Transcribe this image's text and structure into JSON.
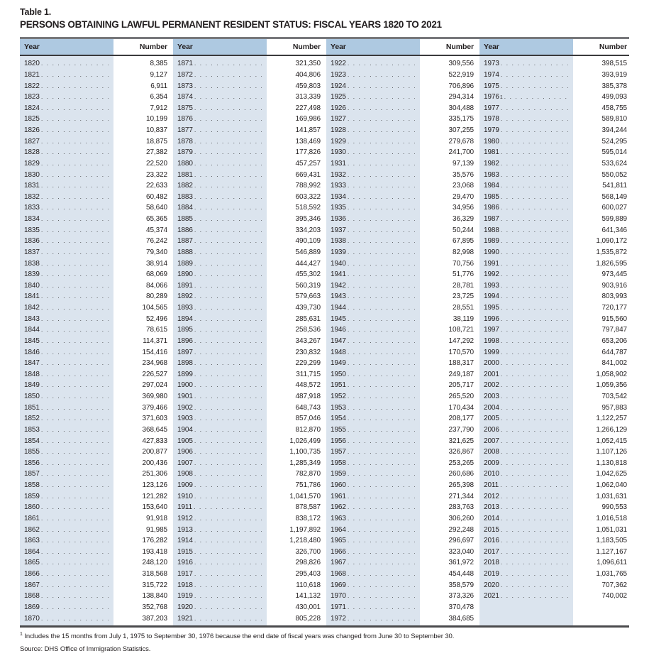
{
  "title": {
    "table_label": "Table 1.",
    "heading": "PERSONS OBTAINING LAWFUL PERMANENT RESIDENT STATUS: FISCAL YEARS 1820 TO 2021"
  },
  "header": {
    "year_label": "Year",
    "number_label": "Number"
  },
  "colors": {
    "header_blue": "#aec9e1",
    "body_blue": "#dbe4ee",
    "top_rule": "#77787b",
    "text": "#231f20"
  },
  "columns": [
    {
      "rows": [
        {
          "year": "1820",
          "number": "8,385"
        },
        {
          "year": "1821",
          "number": "9,127"
        },
        {
          "year": "1822",
          "number": "6,911"
        },
        {
          "year": "1823",
          "number": "6,354"
        },
        {
          "year": "1824",
          "number": "7,912"
        },
        {
          "year": "1825",
          "number": "10,199"
        },
        {
          "year": "1826",
          "number": "10,837"
        },
        {
          "year": "1827",
          "number": "18,875"
        },
        {
          "year": "1828",
          "number": "27,382"
        },
        {
          "year": "1829",
          "number": "22,520"
        },
        {
          "year": "1830",
          "number": "23,322"
        },
        {
          "year": "1831",
          "number": "22,633"
        },
        {
          "year": "1832",
          "number": "60,482"
        },
        {
          "year": "1833",
          "number": "58,640"
        },
        {
          "year": "1834",
          "number": "65,365"
        },
        {
          "year": "1835",
          "number": "45,374"
        },
        {
          "year": "1836",
          "number": "76,242"
        },
        {
          "year": "1837",
          "number": "79,340"
        },
        {
          "year": "1838",
          "number": "38,914"
        },
        {
          "year": "1839",
          "number": "68,069"
        },
        {
          "year": "1840",
          "number": "84,066"
        },
        {
          "year": "1841",
          "number": "80,289"
        },
        {
          "year": "1842",
          "number": "104,565"
        },
        {
          "year": "1843",
          "number": "52,496"
        },
        {
          "year": "1844",
          "number": "78,615"
        },
        {
          "year": "1845",
          "number": "114,371"
        },
        {
          "year": "1846",
          "number": "154,416"
        },
        {
          "year": "1847",
          "number": "234,968"
        },
        {
          "year": "1848",
          "number": "226,527"
        },
        {
          "year": "1849",
          "number": "297,024"
        },
        {
          "year": "1850",
          "number": "369,980"
        },
        {
          "year": "1851",
          "number": "379,466"
        },
        {
          "year": "1852",
          "number": "371,603"
        },
        {
          "year": "1853",
          "number": "368,645"
        },
        {
          "year": "1854",
          "number": "427,833"
        },
        {
          "year": "1855",
          "number": "200,877"
        },
        {
          "year": "1856",
          "number": "200,436"
        },
        {
          "year": "1857",
          "number": "251,306"
        },
        {
          "year": "1858",
          "number": "123,126"
        },
        {
          "year": "1859",
          "number": "121,282"
        },
        {
          "year": "1860",
          "number": "153,640"
        },
        {
          "year": "1861",
          "number": "91,918"
        },
        {
          "year": "1862",
          "number": "91,985"
        },
        {
          "year": "1863",
          "number": "176,282"
        },
        {
          "year": "1864",
          "number": "193,418"
        },
        {
          "year": "1865",
          "number": "248,120"
        },
        {
          "year": "1866",
          "number": "318,568"
        },
        {
          "year": "1867",
          "number": "315,722"
        },
        {
          "year": "1868",
          "number": "138,840"
        },
        {
          "year": "1869",
          "number": "352,768"
        },
        {
          "year": "1870",
          "number": "387,203"
        }
      ]
    },
    {
      "rows": [
        {
          "year": "1871",
          "number": "321,350"
        },
        {
          "year": "1872",
          "number": "404,806"
        },
        {
          "year": "1873",
          "number": "459,803"
        },
        {
          "year": "1874",
          "number": "313,339"
        },
        {
          "year": "1875",
          "number": "227,498"
        },
        {
          "year": "1876",
          "number": "169,986"
        },
        {
          "year": "1877",
          "number": "141,857"
        },
        {
          "year": "1878",
          "number": "138,469"
        },
        {
          "year": "1879",
          "number": "177,826"
        },
        {
          "year": "1880",
          "number": "457,257"
        },
        {
          "year": "1881",
          "number": "669,431"
        },
        {
          "year": "1882",
          "number": "788,992"
        },
        {
          "year": "1883",
          "number": "603,322"
        },
        {
          "year": "1884",
          "number": "518,592"
        },
        {
          "year": "1885",
          "number": "395,346"
        },
        {
          "year": "1886",
          "number": "334,203"
        },
        {
          "year": "1887",
          "number": "490,109"
        },
        {
          "year": "1888",
          "number": "546,889"
        },
        {
          "year": "1889",
          "number": "444,427"
        },
        {
          "year": "1890",
          "number": "455,302"
        },
        {
          "year": "1891",
          "number": "560,319"
        },
        {
          "year": "1892",
          "number": "579,663"
        },
        {
          "year": "1893",
          "number": "439,730"
        },
        {
          "year": "1894",
          "number": "285,631"
        },
        {
          "year": "1895",
          "number": "258,536"
        },
        {
          "year": "1896",
          "number": "343,267"
        },
        {
          "year": "1897",
          "number": "230,832"
        },
        {
          "year": "1898",
          "number": "229,299"
        },
        {
          "year": "1899",
          "number": "311,715"
        },
        {
          "year": "1900",
          "number": "448,572"
        },
        {
          "year": "1901",
          "number": "487,918"
        },
        {
          "year": "1902",
          "number": "648,743"
        },
        {
          "year": "1903",
          "number": "857,046"
        },
        {
          "year": "1904",
          "number": "812,870"
        },
        {
          "year": "1905",
          "number": "1,026,499"
        },
        {
          "year": "1906",
          "number": "1,100,735"
        },
        {
          "year": "1907",
          "number": "1,285,349"
        },
        {
          "year": "1908",
          "number": "782,870"
        },
        {
          "year": "1909",
          "number": "751,786"
        },
        {
          "year": "1910",
          "number": "1,041,570"
        },
        {
          "year": "1911",
          "number": "878,587"
        },
        {
          "year": "1912",
          "number": "838,172"
        },
        {
          "year": "1913",
          "number": "1,197,892"
        },
        {
          "year": "1914",
          "number": "1,218,480"
        },
        {
          "year": "1915",
          "number": "326,700"
        },
        {
          "year": "1916",
          "number": "298,826"
        },
        {
          "year": "1917",
          "number": "295,403"
        },
        {
          "year": "1918",
          "number": "110,618"
        },
        {
          "year": "1919",
          "number": "141,132"
        },
        {
          "year": "1920",
          "number": "430,001"
        },
        {
          "year": "1921",
          "number": "805,228"
        }
      ]
    },
    {
      "rows": [
        {
          "year": "1922",
          "number": "309,556"
        },
        {
          "year": "1923",
          "number": "522,919"
        },
        {
          "year": "1924",
          "number": "706,896"
        },
        {
          "year": "1925",
          "number": "294,314"
        },
        {
          "year": "1926",
          "number": "304,488"
        },
        {
          "year": "1927",
          "number": "335,175"
        },
        {
          "year": "1928",
          "number": "307,255"
        },
        {
          "year": "1929",
          "number": "279,678"
        },
        {
          "year": "1930",
          "number": "241,700"
        },
        {
          "year": "1931",
          "number": "97,139"
        },
        {
          "year": "1932",
          "number": "35,576"
        },
        {
          "year": "1933",
          "number": "23,068"
        },
        {
          "year": "1934",
          "number": "29,470"
        },
        {
          "year": "1935",
          "number": "34,956"
        },
        {
          "year": "1936",
          "number": "36,329"
        },
        {
          "year": "1937",
          "number": "50,244"
        },
        {
          "year": "1938",
          "number": "67,895"
        },
        {
          "year": "1939",
          "number": "82,998"
        },
        {
          "year": "1940",
          "number": "70,756"
        },
        {
          "year": "1941",
          "number": "51,776"
        },
        {
          "year": "1942",
          "number": "28,781"
        },
        {
          "year": "1943",
          "number": "23,725"
        },
        {
          "year": "1944",
          "number": "28,551"
        },
        {
          "year": "1945",
          "number": "38,119"
        },
        {
          "year": "1946",
          "number": "108,721"
        },
        {
          "year": "1947",
          "number": "147,292"
        },
        {
          "year": "1948",
          "number": "170,570"
        },
        {
          "year": "1949",
          "number": "188,317"
        },
        {
          "year": "1950",
          "number": "249,187"
        },
        {
          "year": "1951",
          "number": "205,717"
        },
        {
          "year": "1952",
          "number": "265,520"
        },
        {
          "year": "1953",
          "number": "170,434"
        },
        {
          "year": "1954",
          "number": "208,177"
        },
        {
          "year": "1955",
          "number": "237,790"
        },
        {
          "year": "1956",
          "number": "321,625"
        },
        {
          "year": "1957",
          "number": "326,867"
        },
        {
          "year": "1958",
          "number": "253,265"
        },
        {
          "year": "1959",
          "number": "260,686"
        },
        {
          "year": "1960",
          "number": "265,398"
        },
        {
          "year": "1961",
          "number": "271,344"
        },
        {
          "year": "1962",
          "number": "283,763"
        },
        {
          "year": "1963",
          "number": "306,260"
        },
        {
          "year": "1964",
          "number": "292,248"
        },
        {
          "year": "1965",
          "number": "296,697"
        },
        {
          "year": "1966",
          "number": "323,040"
        },
        {
          "year": "1967",
          "number": "361,972"
        },
        {
          "year": "1968",
          "number": "454,448"
        },
        {
          "year": "1969",
          "number": "358,579"
        },
        {
          "year": "1970",
          "number": "373,326"
        },
        {
          "year": "1971",
          "number": "370,478"
        },
        {
          "year": "1972",
          "number": "384,685"
        }
      ]
    },
    {
      "rows": [
        {
          "year": "1973",
          "number": "398,515"
        },
        {
          "year": "1974",
          "number": "393,919"
        },
        {
          "year": "1975",
          "number": "385,378"
        },
        {
          "year": "1976",
          "sup": "1",
          "number": "499,093"
        },
        {
          "year": "1977",
          "number": "458,755"
        },
        {
          "year": "1978",
          "number": "589,810"
        },
        {
          "year": "1979",
          "number": "394,244"
        },
        {
          "year": "1980",
          "number": "524,295"
        },
        {
          "year": "1981",
          "number": "595,014"
        },
        {
          "year": "1982",
          "number": "533,624"
        },
        {
          "year": "1983",
          "number": "550,052"
        },
        {
          "year": "1984",
          "number": "541,811"
        },
        {
          "year": "1985",
          "number": "568,149"
        },
        {
          "year": "1986",
          "number": "600,027"
        },
        {
          "year": "1987",
          "number": "599,889"
        },
        {
          "year": "1988",
          "number": "641,346"
        },
        {
          "year": "1989",
          "number": "1,090,172"
        },
        {
          "year": "1990",
          "number": "1,535,872"
        },
        {
          "year": "1991",
          "number": "1,826,595"
        },
        {
          "year": "1992",
          "number": "973,445"
        },
        {
          "year": "1993",
          "number": "903,916"
        },
        {
          "year": "1994",
          "number": "803,993"
        },
        {
          "year": "1995",
          "number": "720,177"
        },
        {
          "year": "1996",
          "number": "915,560"
        },
        {
          "year": "1997",
          "number": "797,847"
        },
        {
          "year": "1998",
          "number": "653,206"
        },
        {
          "year": "1999",
          "number": "644,787"
        },
        {
          "year": "2000",
          "number": "841,002"
        },
        {
          "year": "2001",
          "number": "1,058,902"
        },
        {
          "year": "2002",
          "number": "1,059,356"
        },
        {
          "year": "2003",
          "number": "703,542"
        },
        {
          "year": "2004",
          "number": "957,883"
        },
        {
          "year": "2005",
          "number": "1,122,257"
        },
        {
          "year": "2006",
          "number": "1,266,129"
        },
        {
          "year": "2007",
          "number": "1,052,415"
        },
        {
          "year": "2008",
          "number": "1,107,126"
        },
        {
          "year": "2009",
          "number": "1,130,818"
        },
        {
          "year": "2010",
          "number": "1,042,625"
        },
        {
          "year": "2011",
          "number": "1,062,040"
        },
        {
          "year": "2012",
          "number": "1,031,631"
        },
        {
          "year": "2013",
          "number": "990,553"
        },
        {
          "year": "2014",
          "number": "1,016,518"
        },
        {
          "year": "2015",
          "number": "1,051,031"
        },
        {
          "year": "2016",
          "number": "1,183,505"
        },
        {
          "year": "2017",
          "number": "1,127,167"
        },
        {
          "year": "2018",
          "number": "1,096,611"
        },
        {
          "year": "2019",
          "number": "1,031,765"
        },
        {
          "year": "2020",
          "number": "707,362"
        },
        {
          "year": "2021",
          "number": "740,002"
        }
      ]
    }
  ],
  "footnote": {
    "marker": "1",
    "text": "Includes the 15 months from July 1, 1975 to September 30, 1976 because the end date of fiscal years was changed from June 30 to September 30."
  },
  "source": "Source: DHS Office of Immigration Statistics."
}
